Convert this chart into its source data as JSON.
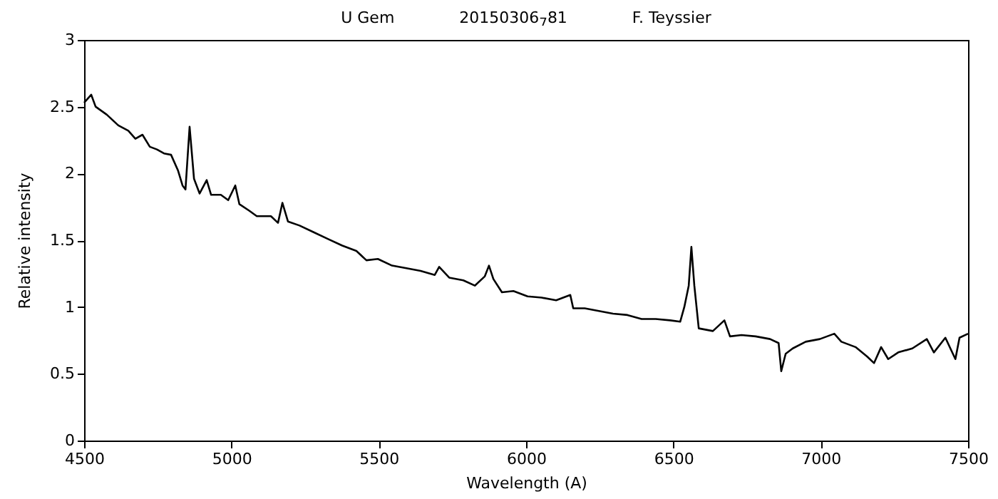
{
  "chart_data": {
    "type": "line",
    "title": "U Gem             20150306$_{7}$81             F. Teyssier",
    "xlabel": "Wavelength (A)",
    "ylabel": "Relative intensity",
    "x": [
      4500,
      4524,
      4539,
      4577,
      4616,
      4650,
      4674,
      4698,
      4723,
      4747,
      4771,
      4795,
      4819,
      4834,
      4844,
      4858,
      4873,
      4892,
      4916,
      4931,
      4964,
      4989,
      5013,
      5027,
      5061,
      5086,
      5134,
      5158,
      5173,
      5192,
      5231,
      5279,
      5327,
      5376,
      5424,
      5458,
      5497,
      5545,
      5594,
      5642,
      5690,
      5705,
      5739,
      5787,
      5826,
      5860,
      5874,
      5889,
      5918,
      5957,
      6005,
      6053,
      6102,
      6150,
      6160,
      6199,
      6247,
      6295,
      6344,
      6392,
      6440,
      6489,
      6523,
      6537,
      6552,
      6561,
      6571,
      6586,
      6634,
      6673,
      6692,
      6731,
      6779,
      6828,
      6857,
      6866,
      6881,
      6905,
      6949,
      6997,
      7046,
      7070,
      7118,
      7157,
      7181,
      7205,
      7229,
      7263,
      7311,
      7360,
      7384,
      7423,
      7457,
      7471,
      7500
    ],
    "series": [
      {
        "color": "#000000",
        "values": [
          2.53,
          2.59,
          2.5,
          2.44,
          2.36,
          2.32,
          2.26,
          2.29,
          2.2,
          2.18,
          2.15,
          2.14,
          2.02,
          1.91,
          1.88,
          2.35,
          1.96,
          1.85,
          1.95,
          1.84,
          1.84,
          1.8,
          1.91,
          1.77,
          1.72,
          1.68,
          1.68,
          1.63,
          1.78,
          1.64,
          1.61,
          1.56,
          1.51,
          1.46,
          1.42,
          1.35,
          1.36,
          1.31,
          1.29,
          1.27,
          1.24,
          1.3,
          1.22,
          1.2,
          1.16,
          1.23,
          1.31,
          1.21,
          1.11,
          1.12,
          1.08,
          1.07,
          1.05,
          1.09,
          0.99,
          0.99,
          0.97,
          0.95,
          0.94,
          0.91,
          0.91,
          0.9,
          0.89,
          1.0,
          1.16,
          1.45,
          1.16,
          0.84,
          0.82,
          0.9,
          0.78,
          0.79,
          0.78,
          0.76,
          0.73,
          0.52,
          0.65,
          0.69,
          0.74,
          0.76,
          0.8,
          0.74,
          0.7,
          0.63,
          0.58,
          0.7,
          0.61,
          0.66,
          0.69,
          0.76,
          0.66,
          0.77,
          0.61,
          0.77,
          0.8
        ]
      }
    ],
    "xlim": [
      4500,
      7500
    ],
    "xticks": [
      4500,
      5000,
      5500,
      6000,
      6500,
      7000,
      7500
    ],
    "ylim": [
      0,
      3
    ],
    "yticks": [
      0,
      0.5,
      1,
      1.5,
      2,
      2.5,
      3
    ],
    "grid": false,
    "marker": "none",
    "line_style": "solid"
  }
}
